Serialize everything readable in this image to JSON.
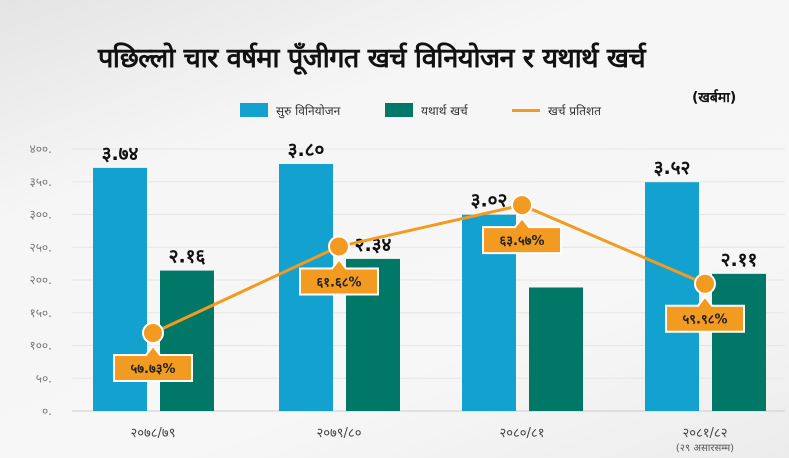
{
  "chart_data": {
    "type": "bar",
    "title": "पछिल्लो चार वर्षमा पूँजीगत खर्च विनियोजन र यथार्थ खर्च",
    "unit": "(खर्बमा)",
    "categories": [
      "२०७८/७९",
      "२०७९/८०",
      "२०८०/८१",
      "२०८१/८२"
    ],
    "category_notes": [
      "",
      "",
      "",
      "(२९ असारसम्म)"
    ],
    "yticks": [
      "४००.",
      "३५०.",
      "३००.",
      "२५०.",
      "२००.",
      "१५०.",
      "१००.",
      "५०.",
      "०."
    ],
    "ylim": [
      0,
      400
    ],
    "grid": true,
    "legend_position": "top",
    "series": [
      {
        "name": "सुरु विनियोजन",
        "type": "bar",
        "color": "#13a2d0",
        "values": [
          3.74,
          3.8,
          3.02,
          3.52
        ],
        "labels": [
          "३.७४",
          "३.८०",
          "३.०२",
          "३.५२"
        ]
      },
      {
        "name": "यथार्थ खर्च",
        "type": "bar",
        "color": "#017767",
        "values": [
          2.16,
          2.34,
          1.9,
          2.11
        ],
        "labels": [
          "२.१६",
          "२.३४",
          null,
          "२.११"
        ]
      },
      {
        "name": "खर्च प्रतिशत",
        "type": "line",
        "color": "#f39a21",
        "values": [
          57.73,
          61.68,
          63.57,
          59.98
        ],
        "labels": [
          "५७.७३%",
          "६१.६८%",
          "६३.५७%",
          "५९.९८%"
        ]
      }
    ]
  }
}
